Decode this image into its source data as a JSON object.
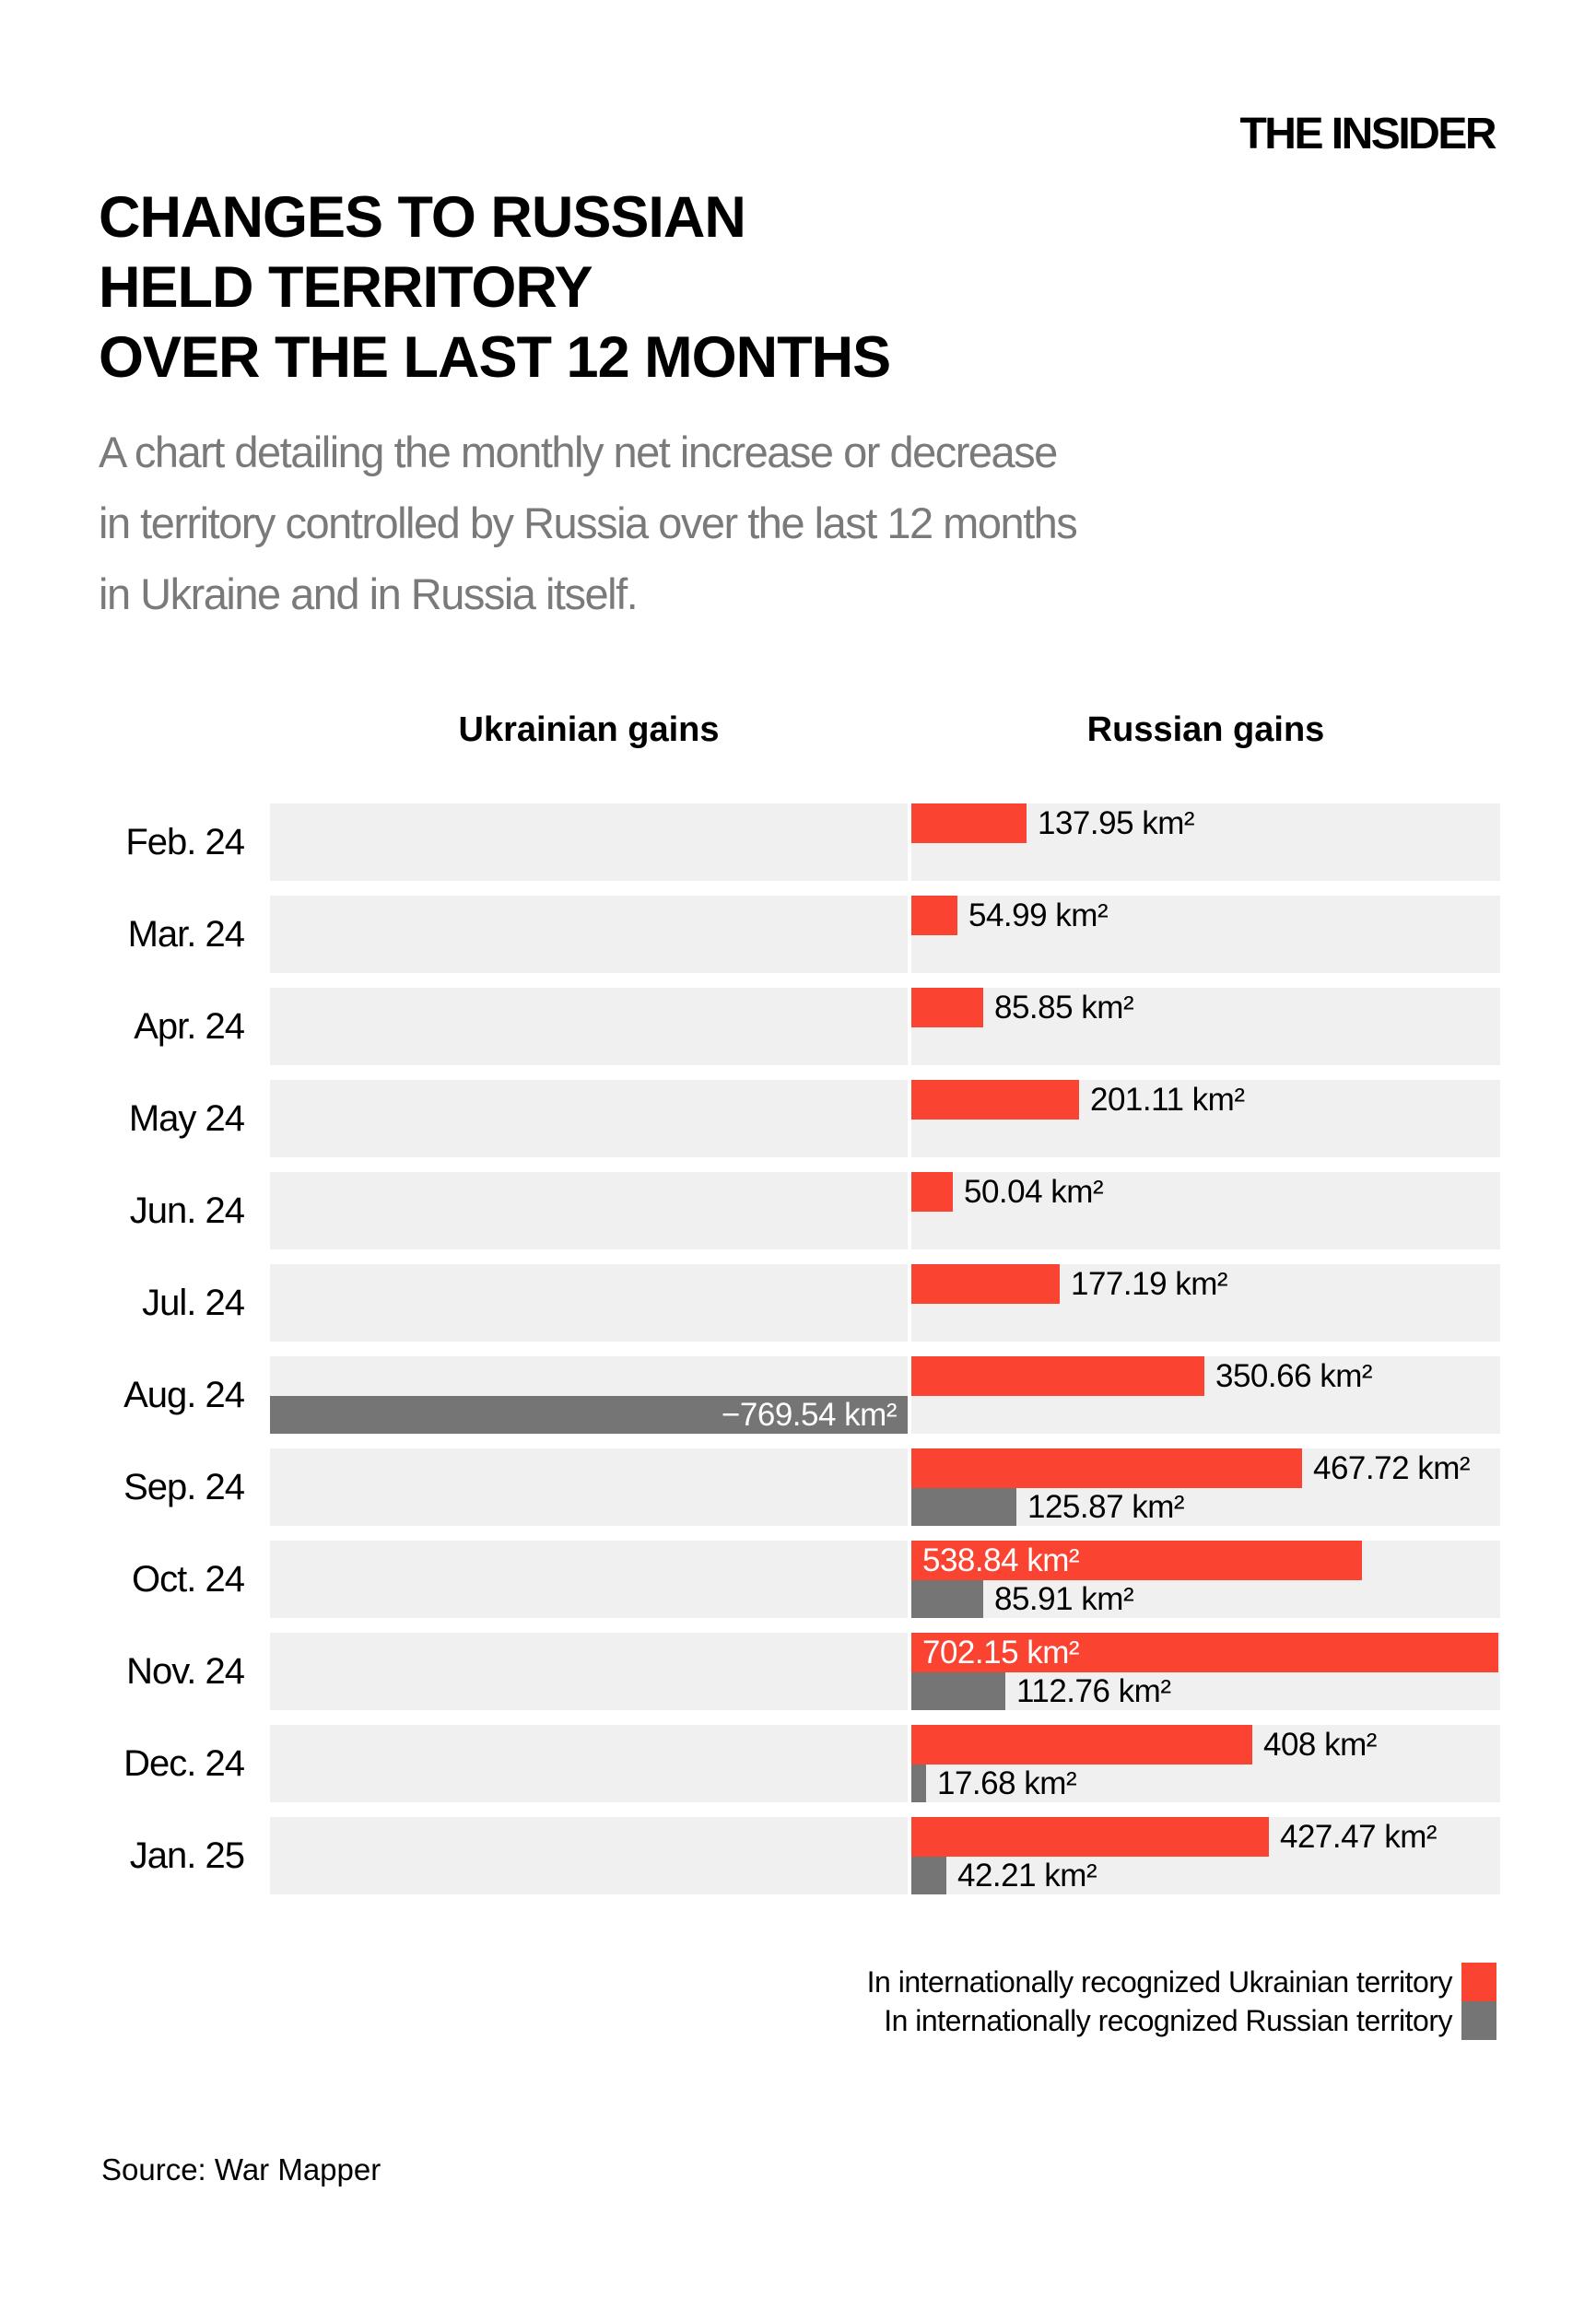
{
  "header": {
    "logo": "THE INSIDER",
    "title_lines": [
      "CHANGES TO RUSSIAN",
      "HELD TERRITORY",
      "OVER THE LAST 12 MONTHS"
    ],
    "subtitle_lines": [
      "A chart detailing the monthly net increase or decrease",
      "in territory controlled by Russia over the last 12 months",
      "in Ukraine and in Russia itself."
    ]
  },
  "chart_data": {
    "type": "bar",
    "orientation": "horizontal",
    "left_header": "Ukrainian gains",
    "right_header": "Russian gains",
    "unit": "km²",
    "xlim": [
      -769.54,
      702.15
    ],
    "band_color": "#f0f0f0",
    "colors": {
      "ukrainian_territory": "#fb4332",
      "russian_territory": "#757575"
    },
    "categories": [
      "Feb. 24",
      "Mar. 24",
      "Apr. 24",
      "May 24",
      "Jun. 24",
      "Jul. 24",
      "Aug. 24",
      "Sep. 24",
      "Oct. 24",
      "Nov. 24",
      "Dec. 24",
      "Jan. 25"
    ],
    "series": [
      {
        "name": "In internationally recognized Ukrainian territory",
        "values": [
          137.95,
          54.99,
          85.85,
          201.11,
          50.04,
          177.19,
          350.66,
          467.72,
          538.84,
          702.15,
          408,
          427.47
        ]
      },
      {
        "name": "In internationally recognized Russian territory",
        "values": [
          null,
          null,
          null,
          null,
          null,
          null,
          -769.54,
          125.87,
          85.91,
          112.76,
          17.68,
          42.21
        ]
      }
    ],
    "rows": [
      {
        "month": "Feb. 24",
        "in_ukraine": {
          "value": 137.95,
          "label": "137.95 km²",
          "inside": false
        },
        "in_russia": null
      },
      {
        "month": "Mar. 24",
        "in_ukraine": {
          "value": 54.99,
          "label": "54.99 km²",
          "inside": false
        },
        "in_russia": null
      },
      {
        "month": "Apr. 24",
        "in_ukraine": {
          "value": 85.85,
          "label": "85.85 km²",
          "inside": false
        },
        "in_russia": null
      },
      {
        "month": "May 24",
        "in_ukraine": {
          "value": 201.11,
          "label": "201.11 km²",
          "inside": false
        },
        "in_russia": null
      },
      {
        "month": "Jun. 24",
        "in_ukraine": {
          "value": 50.04,
          "label": "50.04 km²",
          "inside": false
        },
        "in_russia": null
      },
      {
        "month": "Jul. 24",
        "in_ukraine": {
          "value": 177.19,
          "label": "177.19 km²",
          "inside": false
        },
        "in_russia": null
      },
      {
        "month": "Aug. 24",
        "in_ukraine": {
          "value": 350.66,
          "label": "350.66 km²",
          "inside": false
        },
        "in_russia": {
          "value": -769.54,
          "label": "−769.54 km²",
          "inside": true
        }
      },
      {
        "month": "Sep. 24",
        "in_ukraine": {
          "value": 467.72,
          "label": "467.72 km²",
          "inside": false
        },
        "in_russia": {
          "value": 125.87,
          "label": "125.87 km²",
          "inside": false
        }
      },
      {
        "month": "Oct. 24",
        "in_ukraine": {
          "value": 538.84,
          "label": "538.84 km²",
          "inside": true
        },
        "in_russia": {
          "value": 85.91,
          "label": "85.91 km²",
          "inside": false
        }
      },
      {
        "month": "Nov. 24",
        "in_ukraine": {
          "value": 702.15,
          "label": "702.15 km²",
          "inside": true
        },
        "in_russia": {
          "value": 112.76,
          "label": "112.76 km²",
          "inside": false
        }
      },
      {
        "month": "Dec. 24",
        "in_ukraine": {
          "value": 408,
          "label": "408 km²",
          "inside": false
        },
        "in_russia": {
          "value": 17.68,
          "label": "17.68 km²",
          "inside": false
        }
      },
      {
        "month": "Jan. 25",
        "in_ukraine": {
          "value": 427.47,
          "label": "427.47 km²",
          "inside": false
        },
        "in_russia": {
          "value": 42.21,
          "label": "42.21 km²",
          "inside": false
        }
      }
    ]
  },
  "legend": {
    "items": [
      {
        "label": "In internationally recognized Ukrainian territory",
        "color": "#fb4332"
      },
      {
        "label": "In internationally recognized Russian territory",
        "color": "#757575"
      }
    ]
  },
  "source": "Source: War Mapper"
}
